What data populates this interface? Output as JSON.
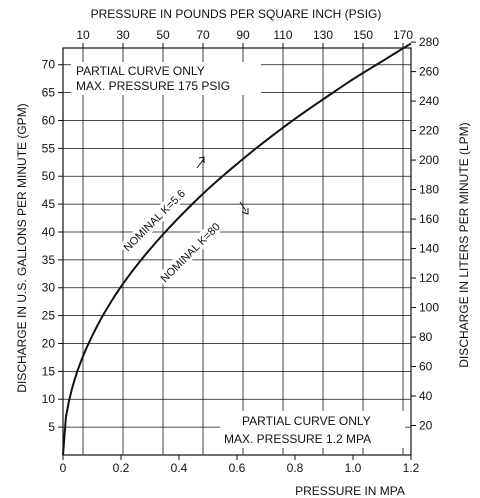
{
  "chart_data": {
    "type": "line",
    "title": "",
    "top_axis": {
      "label": "PRESSURE IN POUNDS PER SQUARE INCH (PSIG)",
      "ticks": [
        10,
        30,
        50,
        70,
        90,
        110,
        130,
        150,
        170
      ],
      "unit_max": 174
    },
    "bottom_axis": {
      "label": "PRESSURE IN MPA",
      "ticks": [
        "0",
        "0.2",
        "0.4",
        "0.6",
        "0.8",
        "1.0",
        "1.2"
      ],
      "xlim": [
        0,
        1.2
      ]
    },
    "left_axis": {
      "label": "DISCHARGE IN U.S. GALLONS PER MINUTE (GPM)",
      "ticks": [
        5,
        10,
        15,
        20,
        25,
        30,
        35,
        40,
        45,
        50,
        55,
        60,
        65,
        70
      ],
      "ylim": [
        0,
        73
      ]
    },
    "right_axis": {
      "label": "DISCHARGE IN LITERS PER MINUTE (LPM)",
      "ticks": [
        20,
        40,
        60,
        80,
        100,
        120,
        140,
        160,
        180,
        200,
        220,
        240,
        260,
        280
      ],
      "ylim": [
        0,
        276
      ]
    },
    "grid": true,
    "series": [
      {
        "x": [
          0,
          0.05,
          0.1,
          0.2,
          0.3,
          0.4,
          0.5,
          0.6,
          0.7,
          0.8,
          0.9,
          1.0,
          1.1,
          1.2
        ],
        "y": [
          0,
          15.1,
          21.3,
          30.2,
          36.9,
          42.6,
          47.7,
          52.2,
          56.4,
          60.3,
          63.9,
          67.4,
          70.6,
          73.8
        ]
      }
    ],
    "annotations": {
      "top_note_line1": "PARTIAL CURVE ONLY",
      "top_note_line2": "MAX. PRESSURE 175 PSIG",
      "bottom_note_line1": "PARTIAL CURVE ONLY",
      "bottom_note_line2": "MAX. PRESSURE 1.2 MPA",
      "label_k56": "NOMINAL K=5.6",
      "label_k80": "NOMINAL K=80"
    }
  }
}
